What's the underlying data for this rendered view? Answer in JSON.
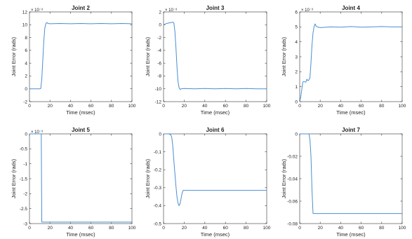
{
  "chart_data": [
    {
      "type": "line",
      "title": "Joint 2",
      "xlabel": "Time (msec)",
      "ylabel": "Joint Error (rads)",
      "multiplier": "× 10⁻³",
      "xlim": [
        0,
        100
      ],
      "ylim": [
        -2,
        12
      ],
      "xticks": [
        0,
        20,
        40,
        60,
        80,
        100
      ],
      "xtick_labels": [
        "0",
        "20",
        "40",
        "60",
        "80",
        "100"
      ],
      "yticks": [
        -2,
        0,
        2,
        4,
        6,
        8,
        10,
        12
      ],
      "ytick_labels": [
        "-2",
        "0",
        "2",
        "4",
        "6",
        "8",
        "10",
        "12"
      ],
      "grid": false,
      "series": [
        {
          "color": "#4a8fd0",
          "points": [
            [
              0,
              0
            ],
            [
              10,
              0
            ],
            [
              11,
              0.05
            ],
            [
              12,
              1.5
            ],
            [
              13,
              4.5
            ],
            [
              14,
              7.5
            ],
            [
              15,
              9.5
            ],
            [
              16,
              10.2
            ],
            [
              17,
              10.35
            ],
            [
              18,
              10.2
            ],
            [
              20,
              10.15
            ],
            [
              30,
              10.2
            ],
            [
              40,
              10.15
            ],
            [
              50,
              10.2
            ],
            [
              60,
              10.15
            ],
            [
              70,
              10.2
            ],
            [
              80,
              10.15
            ],
            [
              90,
              10.2
            ],
            [
              100,
              10.15
            ]
          ]
        }
      ]
    },
    {
      "type": "line",
      "title": "Joint 3",
      "xlabel": "Time (msec)",
      "ylabel": "Joint Error (rads)",
      "multiplier": "× 10⁻³",
      "xlim": [
        0,
        100
      ],
      "ylim": [
        -12,
        2
      ],
      "xticks": [
        0,
        20,
        40,
        60,
        80,
        100
      ],
      "xtick_labels": [
        "0",
        "20",
        "40",
        "60",
        "80",
        "100"
      ],
      "yticks": [
        -12,
        -10,
        -8,
        -6,
        -4,
        -2,
        0,
        2
      ],
      "ytick_labels": [
        "-12",
        "-10",
        "-8",
        "-6",
        "-4",
        "-2",
        "0",
        "2"
      ],
      "grid": false,
      "series": [
        {
          "color": "#4a8fd0",
          "points": [
            [
              0,
              0
            ],
            [
              3,
              0.2
            ],
            [
              6,
              0.3
            ],
            [
              9,
              0.4
            ],
            [
              10,
              0.3
            ],
            [
              11,
              -1
            ],
            [
              12,
              -3.5
            ],
            [
              13,
              -6.5
            ],
            [
              14,
              -8.8
            ],
            [
              15,
              -9.8
            ],
            [
              16,
              -10.1
            ],
            [
              17,
              -10
            ],
            [
              20,
              -9.95
            ],
            [
              30,
              -10
            ],
            [
              40,
              -9.95
            ],
            [
              50,
              -10
            ],
            [
              60,
              -9.95
            ],
            [
              70,
              -10
            ],
            [
              80,
              -9.95
            ],
            [
              90,
              -10
            ],
            [
              100,
              -10
            ]
          ]
        }
      ]
    },
    {
      "type": "line",
      "title": "Joint 4",
      "xlabel": "Time (msec)",
      "ylabel": "Joint Error (rads)",
      "multiplier": "× 10⁻³",
      "xlim": [
        0,
        100
      ],
      "ylim": [
        0,
        6
      ],
      "xticks": [
        0,
        20,
        40,
        60,
        80,
        100
      ],
      "xtick_labels": [
        "0",
        "20",
        "40",
        "60",
        "80",
        "100"
      ],
      "yticks": [
        0,
        1,
        2,
        3,
        4,
        5,
        6
      ],
      "ytick_labels": [
        "0",
        "1",
        "2",
        "3",
        "4",
        "5",
        "6"
      ],
      "grid": false,
      "series": [
        {
          "color": "#4a8fd0",
          "points": [
            [
              0,
              0
            ],
            [
              1,
              0.3
            ],
            [
              2,
              0.8
            ],
            [
              3,
              1.3
            ],
            [
              4,
              1.35
            ],
            [
              6,
              1.3
            ],
            [
              7,
              1.5
            ],
            [
              8,
              1.4
            ],
            [
              9,
              1.45
            ],
            [
              10,
              1.6
            ],
            [
              11,
              2.6
            ],
            [
              12,
              3.8
            ],
            [
              13,
              4.6
            ],
            [
              14,
              5.0
            ],
            [
              15,
              5.2
            ],
            [
              16,
              5.05
            ],
            [
              17,
              5.0
            ],
            [
              20,
              4.95
            ],
            [
              30,
              5.0
            ],
            [
              40,
              4.98
            ],
            [
              50,
              5.02
            ],
            [
              60,
              4.98
            ],
            [
              70,
              5.0
            ],
            [
              80,
              5.02
            ],
            [
              90,
              5.0
            ],
            [
              100,
              5.0
            ]
          ]
        }
      ]
    },
    {
      "type": "line",
      "title": "Joint 5",
      "xlabel": "Time (msec)",
      "ylabel": "Joint Error (rads)",
      "multiplier": "× 10⁻³",
      "xlim": [
        0,
        100
      ],
      "ylim": [
        -3,
        0
      ],
      "xticks": [
        0,
        20,
        40,
        60,
        80,
        100
      ],
      "xtick_labels": [
        "0",
        "20",
        "40",
        "60",
        "80",
        "100"
      ],
      "yticks": [
        -3,
        -2.5,
        -2,
        -1.5,
        -1,
        -0.5,
        0
      ],
      "ytick_labels": [
        "-3",
        "-2.5",
        "-2",
        "-1.5",
        "-1",
        "-0.5",
        "0"
      ],
      "grid": false,
      "series": [
        {
          "color": "#4a8fd0",
          "points": [
            [
              0,
              0
            ],
            [
              11.5,
              0
            ],
            [
              12,
              -2.95
            ],
            [
              30,
              -2.95
            ],
            [
              60,
              -2.95
            ],
            [
              100,
              -2.95
            ]
          ]
        }
      ]
    },
    {
      "type": "line",
      "title": "Joint 6",
      "xlabel": "Time (msec)",
      "ylabel": "Joint Error (rads)",
      "xlim": [
        0,
        100
      ],
      "ylim": [
        -0.5,
        0
      ],
      "xticks": [
        0,
        20,
        40,
        60,
        80,
        100
      ],
      "xtick_labels": [
        "0",
        "20",
        "40",
        "60",
        "80",
        "100"
      ],
      "yticks": [
        -0.5,
        -0.4,
        -0.3,
        -0.2,
        -0.1,
        0
      ],
      "ytick_labels": [
        "-0.5",
        "-0.4",
        "-0.3",
        "-0.2",
        "-0.1",
        "0"
      ],
      "grid": false,
      "series": [
        {
          "color": "#4a8fd0",
          "points": [
            [
              0,
              0
            ],
            [
              5,
              0
            ],
            [
              7,
              -0.005
            ],
            [
              8,
              -0.02
            ],
            [
              9,
              -0.07
            ],
            [
              10,
              -0.15
            ],
            [
              11,
              -0.22
            ],
            [
              12,
              -0.29
            ],
            [
              13,
              -0.35
            ],
            [
              14,
              -0.385
            ],
            [
              15,
              -0.4
            ],
            [
              16,
              -0.39
            ],
            [
              17,
              -0.36
            ],
            [
              18,
              -0.33
            ],
            [
              19,
              -0.315
            ],
            [
              20,
              -0.315
            ],
            [
              40,
              -0.315
            ],
            [
              60,
              -0.315
            ],
            [
              80,
              -0.315
            ],
            [
              100,
              -0.315
            ]
          ]
        }
      ]
    },
    {
      "type": "line",
      "title": "Joint 7",
      "xlabel": "Time (msec)",
      "ylabel": "Joint Error (rads)",
      "xlim": [
        0,
        100
      ],
      "ylim": [
        -0.08,
        0
      ],
      "xticks": [
        0,
        20,
        40,
        60,
        80,
        100
      ],
      "xtick_labels": [
        "0",
        "20",
        "40",
        "60",
        "80",
        "100"
      ],
      "yticks": [
        -0.08,
        -0.06,
        -0.04,
        -0.02,
        0
      ],
      "ytick_labels": [
        "-0.08",
        "-0.06",
        "-0.04",
        "-0.02",
        "0"
      ],
      "grid": false,
      "series": [
        {
          "color": "#4a8fd0",
          "points": [
            [
              0,
              0
            ],
            [
              9,
              0
            ],
            [
              10,
              -0.005
            ],
            [
              11,
              -0.02
            ],
            [
              12,
              -0.05
            ],
            [
              13,
              -0.071
            ],
            [
              20,
              -0.071
            ],
            [
              50,
              -0.071
            ],
            [
              100,
              -0.071
            ]
          ]
        }
      ]
    }
  ]
}
